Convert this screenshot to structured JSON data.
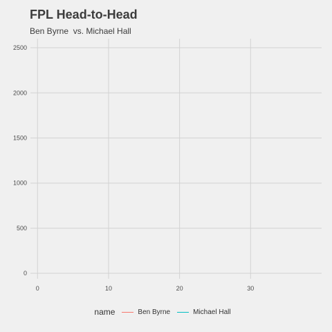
{
  "chart_data": {
    "type": "line",
    "title": "FPL Head-to-Head",
    "subtitle": "Ben Byrne  vs. Michael Hall",
    "xlabel": "",
    "ylabel": "",
    "xlim": [
      -1,
      40
    ],
    "ylim": [
      -60,
      2600
    ],
    "x_ticks": [
      0,
      10,
      20,
      30
    ],
    "y_ticks": [
      0,
      500,
      1000,
      1500,
      2000,
      2500
    ],
    "grid": true,
    "legend": {
      "title": "name",
      "position": "bottom"
    },
    "series": [
      {
        "name": "Ben Byrne",
        "color": "#f8766d",
        "points": []
      },
      {
        "name": "Michael Hall",
        "color": "#00bfc4",
        "points": []
      }
    ]
  },
  "colors": {
    "background": "#f0f0f0",
    "gridline": "#d2d2d2"
  }
}
